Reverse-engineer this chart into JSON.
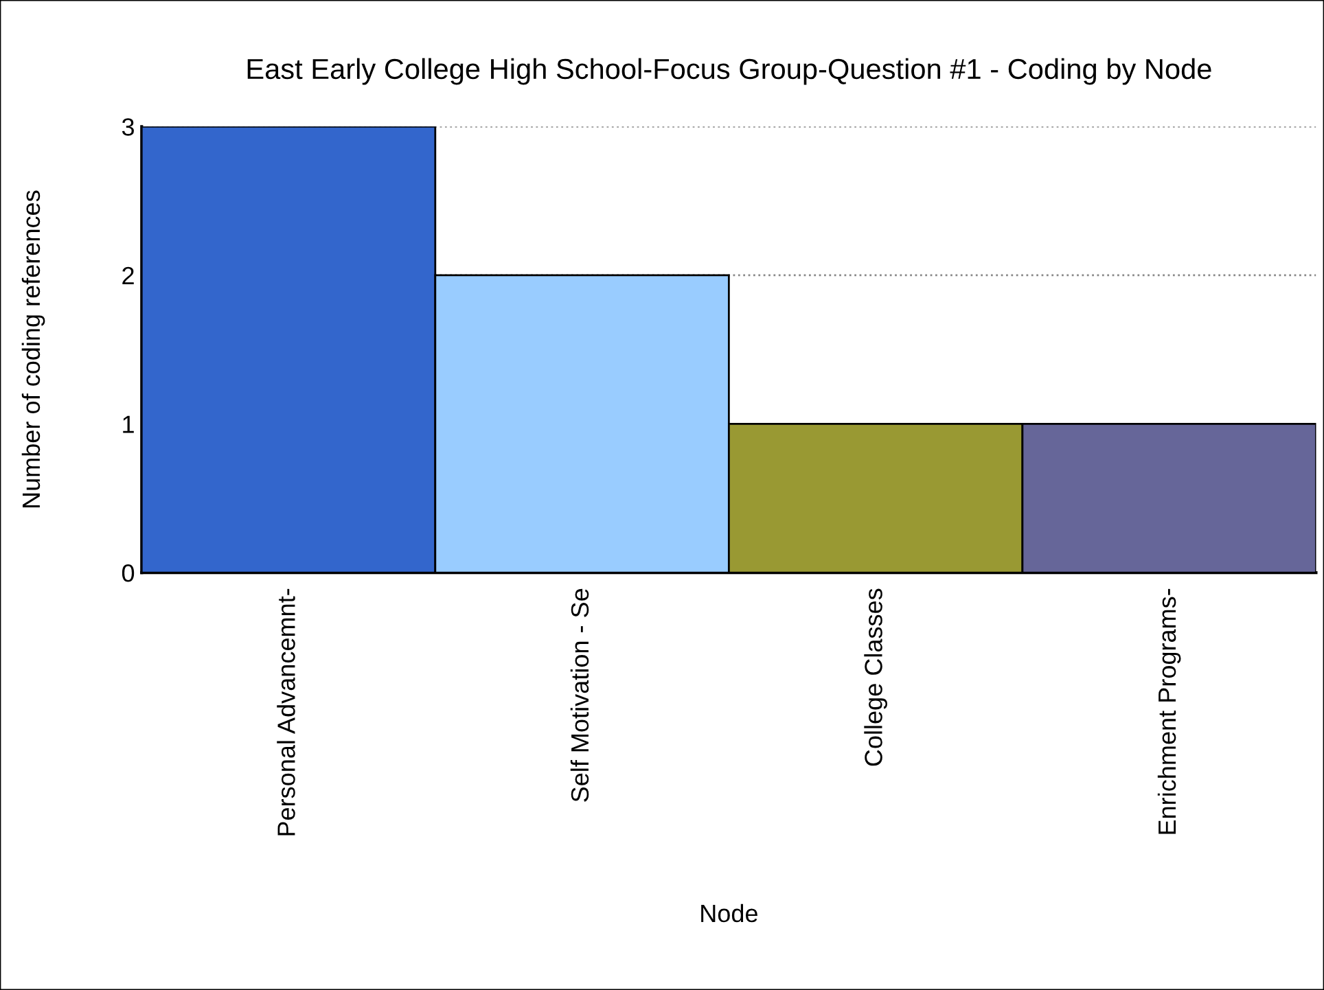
{
  "chart_data": {
    "type": "bar",
    "title": "East Early College High School-Focus Group-Question #1 - Coding by Node",
    "xlabel": "Node",
    "ylabel": "Number of coding references",
    "categories": [
      "Personal Advancemnt-",
      "Self Motivation - Se",
      "College Classes",
      "Enrichment Programs-"
    ],
    "values": [
      3,
      2,
      1,
      1
    ],
    "colors": [
      "#3366cc",
      "#99ccff",
      "#999933",
      "#666699"
    ],
    "ylim": [
      0,
      3
    ],
    "yticks": [
      0,
      1,
      2,
      3
    ],
    "grid": "y"
  }
}
